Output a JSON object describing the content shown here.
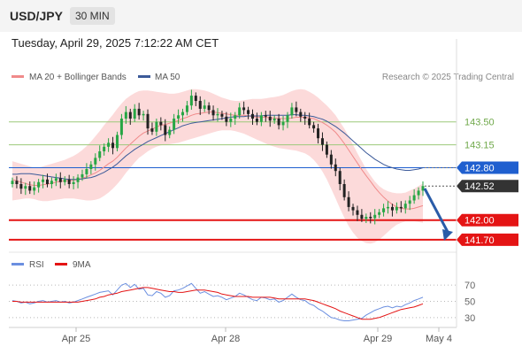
{
  "header": {
    "pair": "USD/JPY",
    "timeframe": "30 MIN",
    "datetime": "Tuesday, April 29, 2025 7:12:22 AM CET"
  },
  "legend": {
    "bb_label": "MA 20 + Bollinger Bands",
    "ma50_label": "MA 50",
    "credit": "Research © 2025 Trading Central"
  },
  "rsi_legend": {
    "rsi_label": "RSI",
    "ma9_label": "9MA"
  },
  "colors": {
    "bb_fill": "#fbd3d3",
    "ma20": "#f08a8a",
    "ma50": "#3c5a99",
    "up": "#27a644",
    "down": "#222222",
    "resistance": "#9cc97a",
    "pivot": "#1f5fcf",
    "support": "#e41414",
    "arrow": "#2a5ca8",
    "rsi": "#6b8fe0",
    "rsi_ma": "#e41414"
  },
  "chart_data": [
    {
      "type": "candlestick",
      "ylim": [
        141.55,
        144.05
      ],
      "x_ticks": [
        "Apr 25",
        "Apr 28",
        "Apr 29",
        "May 4"
      ],
      "levels": [
        {
          "value": 143.5,
          "label": "143.50",
          "kind": "resistance"
        },
        {
          "value": 143.15,
          "label": "143.15",
          "kind": "resistance"
        },
        {
          "value": 142.8,
          "label": "142.80",
          "kind": "pivot"
        },
        {
          "value": 142.52,
          "label": "142.52",
          "kind": "last"
        },
        {
          "value": 142.0,
          "label": "142.00",
          "kind": "support"
        },
        {
          "value": 141.7,
          "label": "141.70",
          "kind": "support"
        }
      ],
      "close": [
        142.6,
        142.55,
        142.48,
        142.52,
        142.45,
        142.5,
        142.58,
        142.62,
        142.55,
        142.6,
        142.64,
        142.58,
        142.62,
        142.55,
        142.58,
        142.65,
        142.7,
        142.78,
        142.85,
        142.95,
        143.05,
        143.12,
        143.18,
        143.1,
        143.3,
        143.55,
        143.65,
        143.55,
        143.7,
        143.6,
        143.62,
        143.4,
        143.35,
        143.5,
        143.45,
        143.3,
        143.38,
        143.55,
        143.6,
        143.65,
        143.75,
        143.9,
        143.82,
        143.7,
        143.75,
        143.68,
        143.6,
        143.62,
        143.58,
        143.5,
        143.55,
        143.6,
        143.72,
        143.68,
        143.62,
        143.55,
        143.5,
        143.6,
        143.58,
        143.52,
        143.55,
        143.45,
        143.5,
        143.6,
        143.72,
        143.65,
        143.58,
        143.55,
        143.45,
        143.4,
        143.25,
        143.15,
        143.0,
        142.85,
        142.75,
        142.55,
        142.35,
        142.2,
        142.15,
        142.08,
        142.02,
        142.05,
        142.03,
        142.08,
        142.12,
        142.18,
        142.2,
        142.15,
        142.2,
        142.18,
        142.25,
        142.3,
        142.38,
        142.45,
        142.52
      ],
      "ma20": [
        142.62,
        142.6,
        142.58,
        142.56,
        142.54,
        142.53,
        142.53,
        142.54,
        142.55,
        142.56,
        142.58,
        142.59,
        142.6,
        142.6,
        142.61,
        142.62,
        142.64,
        142.66,
        142.69,
        142.72,
        142.76,
        142.81,
        142.86,
        142.9,
        142.96,
        143.03,
        143.1,
        143.16,
        143.22,
        143.28,
        143.33,
        143.36,
        143.39,
        143.42,
        143.45,
        143.46,
        143.48,
        143.5,
        143.52,
        143.55,
        143.57,
        143.6,
        143.62,
        143.63,
        143.64,
        143.65,
        143.65,
        143.64,
        143.63,
        143.62,
        143.61,
        143.6,
        143.6,
        143.6,
        143.59,
        143.58,
        143.57,
        143.57,
        143.57,
        143.56,
        143.56,
        143.55,
        143.55,
        143.55,
        143.56,
        143.57,
        143.57,
        143.57,
        143.56,
        143.55,
        143.52,
        143.49,
        143.45,
        143.4,
        143.34,
        143.26,
        143.17,
        143.07,
        142.97,
        142.87,
        142.77,
        142.68,
        142.59,
        142.5,
        142.42,
        142.35,
        142.29,
        142.24,
        142.2,
        142.18,
        142.17,
        142.17,
        142.18,
        142.2,
        142.22
      ],
      "ma50": [
        142.7,
        142.7,
        142.71,
        142.71,
        142.71,
        142.7,
        142.69,
        142.68,
        142.67,
        142.66,
        142.65,
        142.64,
        142.63,
        142.62,
        142.62,
        142.62,
        142.63,
        142.64,
        142.65,
        142.67,
        142.7,
        142.73,
        142.77,
        142.81,
        142.86,
        142.92,
        142.98,
        143.03,
        143.08,
        143.12,
        143.16,
        143.2,
        143.23,
        143.26,
        143.29,
        143.32,
        143.35,
        143.38,
        143.41,
        143.44,
        143.46,
        143.48,
        143.49,
        143.5,
        143.51,
        143.52,
        143.53,
        143.54,
        143.55,
        143.56,
        143.57,
        143.58,
        143.58,
        143.58,
        143.59,
        143.59,
        143.59,
        143.59,
        143.6,
        143.6,
        143.6,
        143.6,
        143.6,
        143.6,
        143.61,
        143.61,
        143.6,
        143.6,
        143.59,
        143.58,
        143.56,
        143.54,
        143.51,
        143.47,
        143.43,
        143.38,
        143.33,
        143.27,
        143.21,
        143.15,
        143.09,
        143.03,
        142.98,
        142.93,
        142.89,
        142.85,
        142.82,
        142.8,
        142.78,
        142.77,
        142.76,
        142.76,
        142.77,
        142.78,
        142.8
      ],
      "bb_upper": [
        142.9,
        142.88,
        142.86,
        142.84,
        142.82,
        142.8,
        142.8,
        142.82,
        142.84,
        142.86,
        142.88,
        142.9,
        142.92,
        142.95,
        142.98,
        143.02,
        143.07,
        143.13,
        143.2,
        143.28,
        143.36,
        143.45,
        143.53,
        143.61,
        143.7,
        143.78,
        143.85,
        143.9,
        143.94,
        143.97,
        143.98,
        143.98,
        143.97,
        143.96,
        143.95,
        143.94,
        143.93,
        143.93,
        143.94,
        143.96,
        143.98,
        144.0,
        144.0,
        143.99,
        143.98,
        143.96,
        143.93,
        143.9,
        143.87,
        143.85,
        143.83,
        143.82,
        143.82,
        143.83,
        143.84,
        143.85,
        143.85,
        143.85,
        143.86,
        143.87,
        143.88,
        143.89,
        143.91,
        143.94,
        143.97,
        143.99,
        144.0,
        143.99,
        143.96,
        143.92,
        143.87,
        143.81,
        143.75,
        143.68,
        143.6,
        143.5,
        143.4,
        143.28,
        143.15,
        143.02,
        142.9,
        142.78,
        142.68,
        142.59,
        142.52,
        142.47,
        142.44,
        142.42,
        142.41,
        142.41,
        142.42,
        142.45,
        142.48,
        142.52,
        142.56
      ],
      "bb_lower": [
        142.3,
        142.31,
        142.32,
        142.33,
        142.33,
        142.32,
        142.3,
        142.29,
        142.29,
        142.3,
        142.31,
        142.32,
        142.33,
        142.33,
        142.33,
        142.32,
        142.31,
        142.3,
        142.3,
        142.31,
        142.33,
        142.37,
        142.42,
        142.48,
        142.55,
        142.63,
        142.72,
        142.8,
        142.88,
        142.95,
        143.0,
        143.05,
        143.09,
        143.12,
        143.14,
        143.15,
        143.16,
        143.17,
        143.18,
        143.2,
        143.22,
        143.24,
        143.26,
        143.28,
        143.3,
        143.32,
        143.34,
        143.36,
        143.37,
        143.37,
        143.37,
        143.36,
        143.34,
        143.32,
        143.29,
        143.26,
        143.23,
        143.2,
        143.17,
        143.14,
        143.12,
        143.1,
        143.09,
        143.08,
        143.07,
        143.06,
        143.04,
        143.02,
        142.98,
        142.92,
        142.84,
        142.74,
        142.62,
        142.48,
        142.33,
        142.18,
        142.04,
        141.91,
        141.81,
        141.73,
        141.68,
        141.65,
        141.64,
        141.66,
        141.7,
        141.76,
        141.82,
        141.88,
        141.93,
        141.96,
        141.98,
        141.98,
        141.98,
        141.97,
        141.96
      ]
    },
    {
      "type": "line",
      "ylim": [
        20,
        80
      ],
      "y_ticks": [
        70,
        50,
        30
      ],
      "series": [
        {
          "name": "RSI",
          "values": [
            51,
            50,
            48,
            49,
            47,
            48,
            50,
            51,
            49,
            50,
            51,
            49,
            50,
            48,
            49,
            51,
            53,
            55,
            57,
            59,
            61,
            62,
            63,
            58,
            64,
            70,
            72,
            67,
            71,
            65,
            66,
            58,
            57,
            62,
            60,
            55,
            57,
            63,
            64,
            66,
            69,
            72,
            66,
            60,
            62,
            59,
            56,
            57,
            55,
            52,
            54,
            56,
            60,
            58,
            55,
            52,
            51,
            55,
            54,
            52,
            53,
            49,
            51,
            55,
            59,
            55,
            52,
            51,
            47,
            45,
            41,
            38,
            34,
            30,
            29,
            27,
            26,
            26,
            27,
            28,
            29,
            33,
            36,
            39,
            41,
            43,
            44,
            42,
            44,
            43,
            46,
            48,
            51,
            53,
            55
          ]
        },
        {
          "name": "9MA",
          "values": [
            50,
            50,
            49,
            49,
            49,
            49,
            49,
            49,
            49,
            49,
            49,
            49,
            49,
            49,
            49,
            49,
            50,
            51,
            52,
            53,
            55,
            56,
            58,
            59,
            60,
            62,
            63,
            64,
            65,
            66,
            67,
            67,
            66,
            65,
            64,
            63,
            62,
            62,
            61,
            61,
            62,
            63,
            64,
            64,
            64,
            63,
            62,
            61,
            59,
            58,
            57,
            56,
            56,
            56,
            56,
            55,
            55,
            55,
            55,
            55,
            54,
            53,
            53,
            53,
            53,
            53,
            53,
            53,
            52,
            51,
            49,
            47,
            45,
            43,
            41,
            38,
            36,
            34,
            32,
            30,
            28,
            28,
            28,
            29,
            30,
            32,
            34,
            36,
            38,
            40,
            41,
            42,
            43,
            45,
            47
          ]
        }
      ]
    }
  ]
}
